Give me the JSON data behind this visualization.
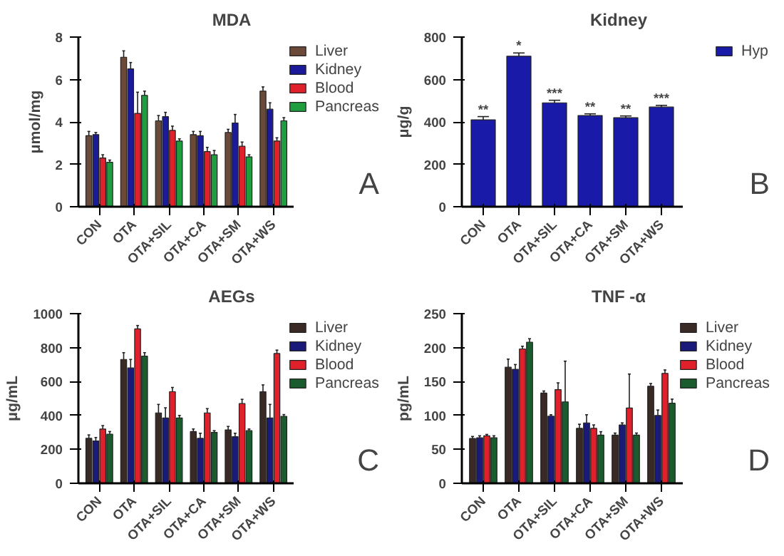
{
  "chart_data": [
    {
      "type": "bar",
      "title": "MDA",
      "ylabel": "μmol/mg",
      "categories": [
        "CON",
        "OTA",
        "OTA+SIL",
        "OTA+CA",
        "OTA+SM",
        "OTA+WS"
      ],
      "ylim": [
        0,
        8
      ],
      "yticks": [
        0,
        2,
        4,
        6,
        8
      ],
      "grid": false,
      "legend": "right",
      "series": [
        {
          "name": "Liver",
          "color": "#6b4a3a",
          "values": [
            3.35,
            7.05,
            4.05,
            3.4,
            3.5,
            5.45
          ],
          "errors": [
            0.2,
            0.3,
            0.25,
            0.15,
            0.15,
            0.2
          ]
        },
        {
          "name": "Kidney",
          "color": "#1a1a9a",
          "values": [
            3.4,
            6.5,
            4.25,
            3.35,
            3.95,
            4.6
          ],
          "errors": [
            0.1,
            0.3,
            0.2,
            0.2,
            0.4,
            0.3
          ]
        },
        {
          "name": "Blood",
          "color": "#e0202a",
          "values": [
            2.3,
            4.4,
            3.6,
            2.6,
            2.85,
            3.1
          ],
          "errors": [
            0.15,
            1.0,
            0.2,
            0.2,
            0.2,
            0.15
          ]
        },
        {
          "name": "Pancreas",
          "color": "#1f9e40",
          "values": [
            2.1,
            5.25,
            3.1,
            2.45,
            2.35,
            4.05
          ],
          "errors": [
            0.1,
            0.2,
            0.1,
            0.2,
            0.1,
            0.15
          ]
        }
      ],
      "annotations": [
        "A"
      ]
    },
    {
      "type": "bar",
      "title": "Kidney",
      "ylabel": "μg/g",
      "categories": [
        "CON",
        "OTA",
        "OTA+SIL",
        "OTA+CA",
        "OTA+SM",
        "OTA+WS"
      ],
      "ylim": [
        0,
        800
      ],
      "yticks": [
        0,
        200,
        400,
        600,
        800
      ],
      "grid": false,
      "legend": "right",
      "series": [
        {
          "name": "Hyp",
          "color": "#1a1aa8",
          "values": [
            410,
            710,
            490,
            430,
            420,
            470
          ],
          "errors": [
            15,
            15,
            12,
            8,
            8,
            8
          ]
        }
      ],
      "annotations": [
        {
          "text": "**",
          "x": "CON",
          "y": 425
        },
        {
          "text": "*",
          "x": "OTA",
          "y": 725
        },
        {
          "text": "***",
          "x": "OTA+SIL",
          "y": 502
        },
        {
          "text": "**",
          "x": "OTA+CA",
          "y": 438
        },
        {
          "text": "**",
          "x": "OTA+SM",
          "y": 428
        },
        {
          "text": "***",
          "x": "OTA+WS",
          "y": 478
        },
        "B"
      ]
    },
    {
      "type": "bar",
      "title": "AEGs",
      "ylabel": "μg/mL",
      "categories": [
        "CON",
        "OTA",
        "OTA+SIL",
        "OTA+CA",
        "OTA+SM",
        "OTA+WS"
      ],
      "ylim": [
        0,
        1000
      ],
      "yticks": [
        0,
        200,
        400,
        600,
        800,
        1000
      ],
      "grid": false,
      "legend": "right",
      "series": [
        {
          "name": "Liver",
          "color": "#3a2a25",
          "values": [
            265,
            730,
            415,
            305,
            315,
            540
          ],
          "errors": [
            20,
            40,
            50,
            15,
            20,
            40
          ]
        },
        {
          "name": "Kidney",
          "color": "#1a1a7a",
          "values": [
            250,
            680,
            385,
            265,
            275,
            385
          ],
          "errors": [
            20,
            50,
            60,
            30,
            20,
            80
          ]
        },
        {
          "name": "Blood",
          "color": "#e0202a",
          "values": [
            320,
            910,
            540,
            415,
            470,
            765
          ],
          "errors": [
            20,
            20,
            25,
            25,
            25,
            20
          ]
        },
        {
          "name": "Pancreas",
          "color": "#1a5c2e",
          "values": [
            290,
            750,
            385,
            300,
            310,
            395
          ],
          "errors": [
            15,
            20,
            15,
            10,
            10,
            10
          ]
        }
      ],
      "annotations": [
        "C"
      ]
    },
    {
      "type": "bar",
      "title": "TNF -α",
      "ylabel": "pg/mL",
      "categories": [
        "CON",
        "OTA",
        "OTA+SIL",
        "OTA+CA",
        "OTA+SM",
        "OTA+WS"
      ],
      "ylim": [
        0,
        250
      ],
      "yticks": [
        0,
        50,
        100,
        150,
        200,
        250
      ],
      "grid": false,
      "legend": "right",
      "series": [
        {
          "name": "Liver",
          "color": "#3a2a25",
          "values": [
            66,
            171,
            133,
            81,
            71,
            143
          ],
          "errors": [
            3,
            12,
            3,
            6,
            3,
            4
          ]
        },
        {
          "name": "Kidney",
          "color": "#1a1a7a",
          "values": [
            67,
            168,
            99,
            89,
            86,
            100
          ],
          "errors": [
            3,
            7,
            2,
            12,
            3,
            8
          ]
        },
        {
          "name": "Blood",
          "color": "#e0202a",
          "values": [
            70,
            198,
            138,
            81,
            111,
            162
          ],
          "errors": [
            2,
            4,
            10,
            5,
            50,
            5
          ]
        },
        {
          "name": "Pancreas",
          "color": "#1a5c2e",
          "values": [
            67,
            208,
            120,
            71,
            71,
            118
          ],
          "errors": [
            3,
            5,
            60,
            5,
            3,
            6
          ]
        }
      ],
      "annotations": [
        "D"
      ]
    }
  ]
}
